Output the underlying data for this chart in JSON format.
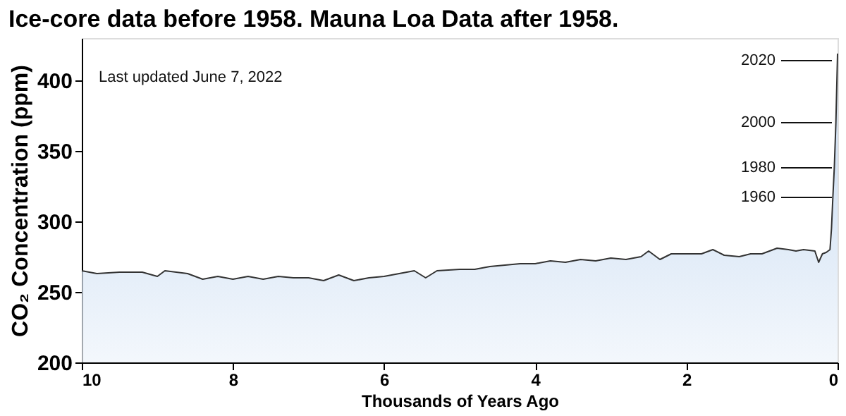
{
  "chart_data": {
    "type": "area",
    "title": "Ice-core data before 1958. Mauna Loa Data after 1958.",
    "xlabel": "Thousands of Years Ago",
    "ylabel": "CO₂ Concentration (ppm)",
    "xlim": [
      10,
      0
    ],
    "xticks": [
      10,
      8,
      6,
      4,
      2,
      0
    ],
    "ylim": [
      200,
      430
    ],
    "yticks": [
      200,
      250,
      300,
      350,
      400
    ],
    "grid": false,
    "annotations": [
      "Last updated June 7, 2022",
      "2020",
      "2000",
      "1980",
      "1960"
    ],
    "x": [
      10,
      9.8,
      9.5,
      9.2,
      9.0,
      8.9,
      8.6,
      8.4,
      8.2,
      8.0,
      7.8,
      7.6,
      7.4,
      7.2,
      7.0,
      6.8,
      6.6,
      6.4,
      6.2,
      6.0,
      5.7,
      5.6,
      5.45,
      5.3,
      5.0,
      4.8,
      4.6,
      4.4,
      4.2,
      4.0,
      3.8,
      3.6,
      3.4,
      3.2,
      3.0,
      2.8,
      2.6,
      2.5,
      2.35,
      2.2,
      2.0,
      1.8,
      1.65,
      1.5,
      1.3,
      1.15,
      1.0,
      0.8,
      0.65,
      0.55,
      0.45,
      0.3,
      0.25,
      0.2,
      0.15,
      0.1,
      0.08,
      0.062,
      0.042,
      0.022,
      0.002,
      0.0
    ],
    "series": [
      {
        "color": "#a9c7ea",
        "values": [
          265,
          263,
          264,
          264,
          261,
          265,
          263,
          259,
          261,
          259,
          261,
          259,
          261,
          260,
          260,
          258,
          262,
          258,
          260,
          261,
          264,
          265,
          260,
          265,
          266,
          266,
          268,
          269,
          270,
          270,
          272,
          271,
          273,
          272,
          274,
          273,
          275,
          279,
          273,
          277,
          277,
          277,
          280,
          276,
          275,
          277,
          277,
          281,
          280,
          279,
          280,
          279,
          271,
          277,
          278,
          280,
          295,
          317,
          339,
          370,
          414,
          419
        ]
      }
    ]
  }
}
